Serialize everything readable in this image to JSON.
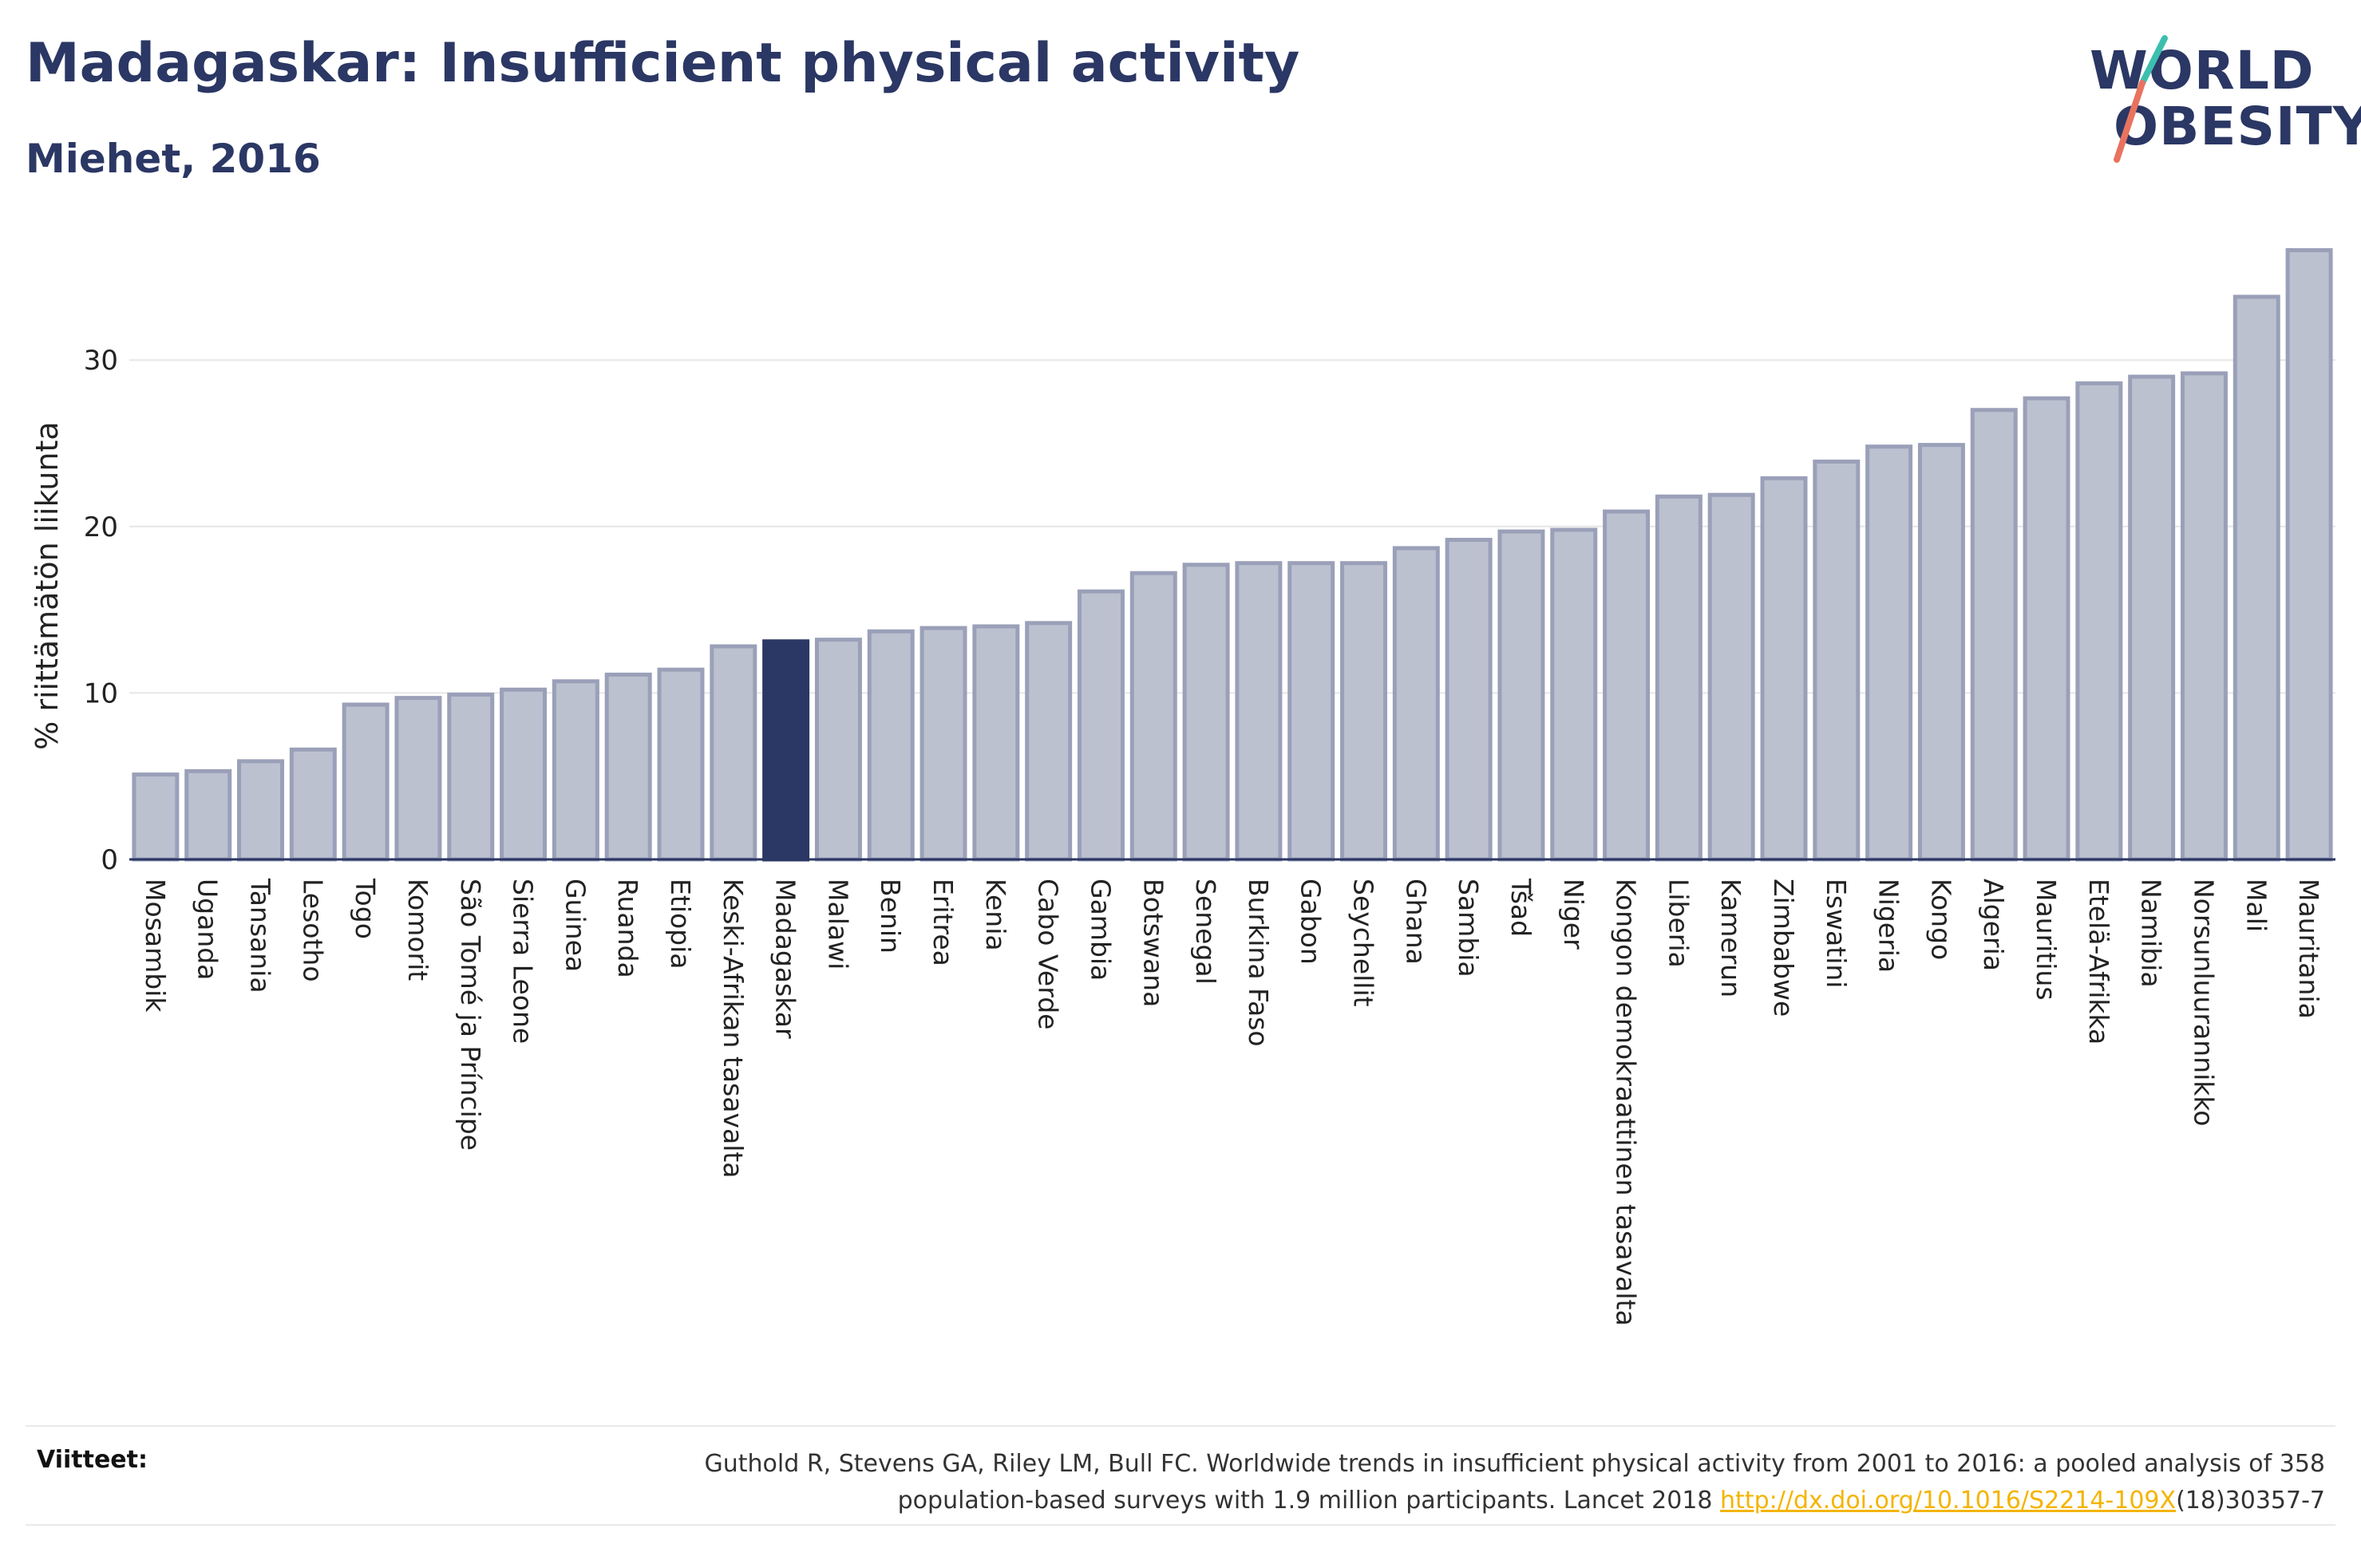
{
  "title": "Madagaskar: Insufficient physical activity",
  "subtitle": "Miehet, 2016",
  "logo": {
    "line1": "WORLD",
    "line2": "OBESITY"
  },
  "colors": {
    "highlight": "#2b3764",
    "bar_fill": "#bcc1d0",
    "bar_stroke": "#9aa0b8",
    "title": "#2b3764",
    "link": "#f4b400",
    "logo_teal": "#3cbfae",
    "logo_coral": "#e8735f"
  },
  "chart_data": {
    "type": "bar",
    "ylabel": "% riittämätön liikunta",
    "ylim": [
      0,
      38
    ],
    "yticks": [
      0,
      10,
      20,
      30
    ],
    "grid": true,
    "highlight": "Madagaskar",
    "categories": [
      "Mosambik",
      "Uganda",
      "Tansania",
      "Lesotho",
      "Togo",
      "Komorit",
      "São Tomé ja Príncipe",
      "Sierra Leone",
      "Guinea",
      "Ruanda",
      "Etiopia",
      "Keski-Afrikan tasavalta",
      "Madagaskar",
      "Malawi",
      "Benin",
      "Eritrea",
      "Kenia",
      "Cabo Verde",
      "Gambia",
      "Botswana",
      "Senegal",
      "Burkina Faso",
      "Gabon",
      "Seychellit",
      "Ghana",
      "Sambia",
      "Tšad",
      "Niger",
      "Kongon demokraattinen tasavalta",
      "Liberia",
      "Kamerun",
      "Zimbabwe",
      "Eswatini",
      "Nigeria",
      "Kongo",
      "Algeria",
      "Mauritius",
      "Etelä-Afrikka",
      "Namibia",
      "Norsunluurannikko",
      "Mali",
      "Mauritania"
    ],
    "values": [
      5.1,
      5.3,
      5.9,
      6.6,
      9.3,
      9.7,
      9.9,
      10.2,
      10.7,
      11.1,
      11.4,
      12.8,
      13.1,
      13.2,
      13.7,
      13.9,
      14.0,
      14.2,
      16.1,
      17.2,
      17.7,
      17.8,
      17.8,
      17.8,
      18.7,
      19.2,
      19.7,
      19.8,
      20.9,
      21.8,
      21.9,
      22.9,
      23.9,
      24.8,
      24.9,
      27.0,
      27.7,
      28.6,
      29.0,
      29.2,
      33.8,
      36.6
    ]
  },
  "references": {
    "label": "Viitteet:",
    "text_line1": "Guthold R, Stevens GA, Riley LM, Bull FC. Worldwide trends in insufficient physical activity from 2001 to 2016: a pooled analysis of 358",
    "text_line2_pre": "population-based surveys with 1.9 million participants. Lancet 2018 ",
    "link": "http://dx.doi.org/10.1016/S2214-109X",
    "text_line2_post": "(18)30357-7"
  }
}
